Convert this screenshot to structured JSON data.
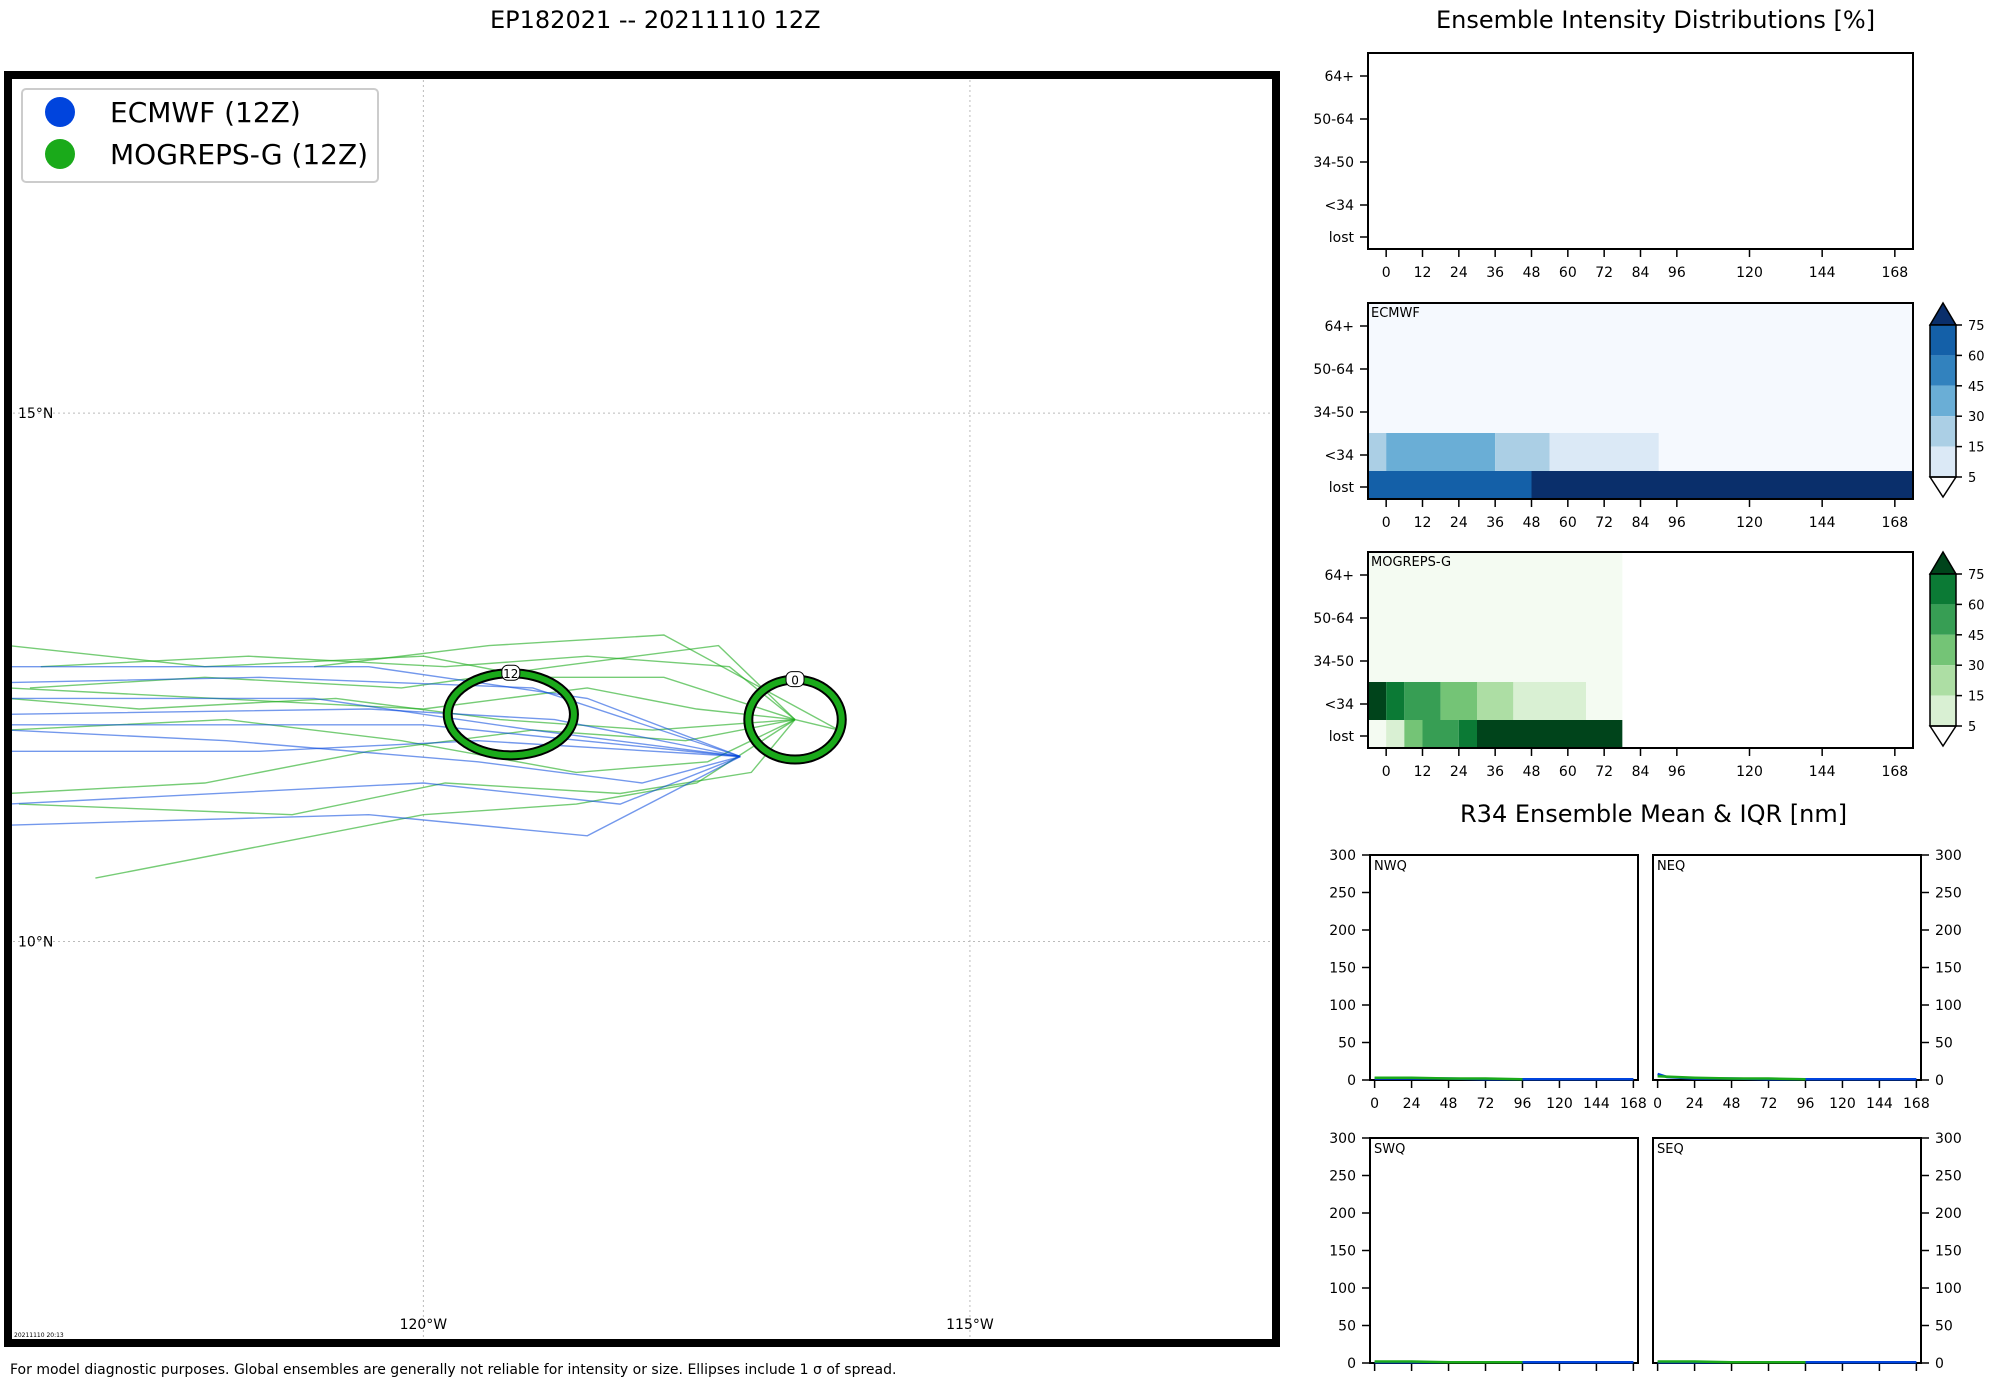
{
  "header": {
    "map_title": "EP182021 -- 20211110 12Z",
    "intensity_title": "Ensemble Intensity Distributions [%]",
    "r34_title": "R34 Ensemble Mean & IQR [nm]",
    "footnote": "For model diagnostic purposes. Global ensembles are generally not reliable for intensity or size. Ellipses include 1 σ of spread.",
    "stamp": "20211110 20:13"
  },
  "colors": {
    "ecmwf": "#0044dd",
    "mogreps": "#1aaa1a"
  },
  "chart_data": [
    {
      "type": "map",
      "legend_position": "top-left",
      "legend": [
        {
          "name": "ECMWF (12Z)",
          "color": "#0044dd"
        },
        {
          "name": "MOGREPS-G (12Z)",
          "color": "#1aaa1a"
        }
      ],
      "lon_range": [
        -123.8,
        -112.2
      ],
      "lat_range": [
        6.2,
        18.2
      ],
      "lon_ticks": [
        {
          "value": -120,
          "label": "120°W"
        },
        {
          "value": -115,
          "label": "115°W"
        }
      ],
      "lat_ticks": [
        {
          "value": 15,
          "label": "15°N"
        },
        {
          "value": 10,
          "label": "10°N"
        }
      ],
      "grid": true,
      "ellipses": [
        {
          "label": "0",
          "lon": -116.6,
          "lat": 12.1,
          "rx_deg": 0.4,
          "ry_deg": 0.35,
          "color": "#1aaa1a"
        },
        {
          "label": "12",
          "lon": -119.2,
          "lat": 12.15,
          "rx_deg": 0.55,
          "ry_deg": 0.36,
          "color": "#1aaa1a"
        }
      ],
      "ecmwf_tracks": [
        [
          [
            -117.1,
            11.75
          ],
          [
            -118.8,
            12.1
          ],
          [
            -120.5,
            12.2
          ],
          [
            -123.8,
            12.15
          ]
        ],
        [
          [
            -117.1,
            11.75
          ],
          [
            -119.0,
            12.0
          ],
          [
            -121.0,
            12.3
          ],
          [
            -123.8,
            12.3
          ]
        ],
        [
          [
            -117.1,
            11.75
          ],
          [
            -118.5,
            12.3
          ],
          [
            -120.5,
            12.6
          ],
          [
            -123.8,
            12.6
          ]
        ],
        [
          [
            -117.1,
            11.75
          ],
          [
            -119.5,
            11.9
          ],
          [
            -121.5,
            11.8
          ],
          [
            -123.8,
            11.8
          ]
        ],
        [
          [
            -117.1,
            11.75
          ],
          [
            -118.2,
            11.3
          ],
          [
            -120.0,
            11.5
          ],
          [
            -123.8,
            11.3
          ]
        ],
        [
          [
            -117.1,
            11.75
          ],
          [
            -118.5,
            11.0
          ],
          [
            -120.5,
            11.2
          ],
          [
            -123.8,
            11.1
          ]
        ],
        [
          [
            -117.1,
            11.75
          ],
          [
            -119.0,
            12.4
          ],
          [
            -121.5,
            12.5
          ],
          [
            -123.8,
            12.45
          ]
        ],
        [
          [
            -117.1,
            11.75
          ],
          [
            -120.0,
            12.05
          ],
          [
            -123.8,
            12.05
          ]
        ],
        [
          [
            -117.1,
            11.75
          ],
          [
            -118.0,
            11.5
          ],
          [
            -119.5,
            11.7
          ],
          [
            -121.8,
            11.9
          ],
          [
            -123.8,
            12.0
          ]
        ]
      ],
      "mogreps_tracks": [
        [
          [
            -116.6,
            12.1
          ],
          [
            -117.5,
            12.2
          ],
          [
            -118.5,
            12.4
          ],
          [
            -120.0,
            12.2
          ],
          [
            -123.8,
            12.4
          ]
        ],
        [
          [
            -116.6,
            12.1
          ],
          [
            -117.3,
            12.8
          ],
          [
            -118.8,
            12.6
          ],
          [
            -120.2,
            12.4
          ],
          [
            -122.0,
            12.5
          ],
          [
            -123.6,
            12.4
          ]
        ],
        [
          [
            -116.6,
            12.1
          ],
          [
            -117.5,
            11.5
          ],
          [
            -118.6,
            11.3
          ],
          [
            -120.0,
            11.2
          ],
          [
            -121.5,
            10.9
          ],
          [
            -123.0,
            10.6
          ]
        ],
        [
          [
            -116.6,
            12.1
          ],
          [
            -117.6,
            11.9
          ],
          [
            -119.0,
            12.0
          ],
          [
            -120.5,
            11.8
          ],
          [
            -122.0,
            11.5
          ],
          [
            -123.8,
            11.4
          ]
        ],
        [
          [
            -116.6,
            12.1
          ],
          [
            -117.2,
            12.6
          ],
          [
            -118.5,
            12.7
          ],
          [
            -119.8,
            12.6
          ],
          [
            -121.6,
            12.7
          ],
          [
            -123.5,
            12.6
          ]
        ],
        [
          [
            -116.6,
            12.1
          ],
          [
            -117.8,
            12.5
          ],
          [
            -119.0,
            12.5
          ],
          [
            -120.0,
            12.7
          ],
          [
            -122.0,
            12.6
          ],
          [
            -123.8,
            12.8
          ]
        ],
        [
          [
            -116.6,
            12.1
          ],
          [
            -117.4,
            11.7
          ],
          [
            -118.6,
            11.6
          ],
          [
            -120.2,
            11.9
          ],
          [
            -121.8,
            12.1
          ],
          [
            -123.8,
            12.0
          ]
        ],
        [
          [
            -116.6,
            12.1
          ],
          [
            -117.0,
            11.6
          ],
          [
            -118.2,
            11.4
          ],
          [
            -119.8,
            11.5
          ],
          [
            -121.2,
            11.2
          ],
          [
            -123.7,
            11.3
          ]
        ],
        [
          [
            -116.6,
            12.1
          ],
          [
            -117.9,
            12.0
          ],
          [
            -119.3,
            12.1
          ],
          [
            -120.8,
            12.3
          ],
          [
            -122.6,
            12.2
          ],
          [
            -123.8,
            12.3
          ]
        ],
        [
          [
            -116.6,
            12.1
          ],
          [
            -116.2,
            12.0
          ],
          [
            -117.8,
            12.9
          ],
          [
            -119.4,
            12.8
          ],
          [
            -121.0,
            12.6
          ]
        ]
      ]
    },
    {
      "type": "heatmap",
      "name": "",
      "x_ticks": [
        0,
        12,
        24,
        36,
        48,
        60,
        72,
        84,
        96,
        120,
        144,
        168
      ],
      "y_labels": [
        "lost",
        "<34",
        "34-50",
        "50-64",
        "64+"
      ],
      "cells": []
    },
    {
      "type": "heatmap",
      "name": "ECMWF",
      "x_ticks": [
        0,
        12,
        24,
        36,
        48,
        60,
        72,
        84,
        96,
        120,
        144,
        168
      ],
      "y_labels": [
        "lost",
        "<34",
        "34-50",
        "50-64",
        "64+"
      ],
      "colorbar_ticks": [
        5,
        15,
        30,
        45,
        60,
        75
      ],
      "colorbar_colors": [
        "#dbe9f6",
        "#abcfe5",
        "#6aaed6",
        "#3282be",
        "#1460a8",
        "#0a2f6b"
      ],
      "background": "#f5f9fe",
      "background_x_range": [
        -6,
        174
      ],
      "cells": [
        {
          "row": "lost",
          "x0": -6,
          "x1": 48,
          "value": 62
        },
        {
          "row": "lost",
          "x0": 48,
          "x1": 174,
          "value": 80
        },
        {
          "row": "<34",
          "x0": -6,
          "x1": 0,
          "value": 25
        },
        {
          "row": "<34",
          "x0": 0,
          "x1": 36,
          "value": 35
        },
        {
          "row": "<34",
          "x0": 36,
          "x1": 54,
          "value": 25
        },
        {
          "row": "<34",
          "x0": 54,
          "x1": 90,
          "value": 10
        }
      ]
    },
    {
      "type": "heatmap",
      "name": "MOGREPS-G",
      "x_ticks": [
        0,
        12,
        24,
        36,
        48,
        60,
        72,
        84,
        96,
        120,
        144,
        168
      ],
      "y_labels": [
        "lost",
        "<34",
        "34-50",
        "50-64",
        "64+"
      ],
      "colorbar_ticks": [
        5,
        15,
        30,
        45,
        60,
        75
      ],
      "colorbar_colors": [
        "#d9f0d3",
        "#addea4",
        "#74c476",
        "#379e54",
        "#0b7a35",
        "#00441b"
      ],
      "background": "#f4fbf2",
      "background_x_range": [
        -6,
        78
      ],
      "cells": [
        {
          "row": "<34",
          "x0": -6,
          "x1": 0,
          "value": 80
        },
        {
          "row": "<34",
          "x0": 0,
          "x1": 6,
          "value": 65
        },
        {
          "row": "<34",
          "x0": 6,
          "x1": 18,
          "value": 50
        },
        {
          "row": "<34",
          "x0": 18,
          "x1": 30,
          "value": 35
        },
        {
          "row": "<34",
          "x0": 30,
          "x1": 42,
          "value": 20
        },
        {
          "row": "<34",
          "x0": 42,
          "x1": 66,
          "value": 10
        },
        {
          "row": "lost",
          "x0": 0,
          "x1": 6,
          "value": 10
        },
        {
          "row": "lost",
          "x0": 6,
          "x1": 12,
          "value": 35
        },
        {
          "row": "lost",
          "x0": 12,
          "x1": 24,
          "value": 50
        },
        {
          "row": "lost",
          "x0": 24,
          "x1": 30,
          "value": 65
        },
        {
          "row": "lost",
          "x0": 30,
          "x1": 78,
          "value": 80
        }
      ]
    },
    {
      "type": "line",
      "name": "NWQ",
      "x_ticks": [
        0,
        24,
        48,
        72,
        96,
        120,
        144,
        168
      ],
      "ylim": [
        0,
        300
      ],
      "y_ticks": [
        0,
        50,
        100,
        150,
        200,
        250,
        300
      ],
      "series": [
        {
          "color": "#0044dd",
          "x": [
            0,
            24,
            48,
            72,
            96,
            120,
            144,
            168
          ],
          "y": [
            2,
            2,
            2,
            1,
            1,
            1,
            1,
            1
          ]
        },
        {
          "color": "#1aaa1a",
          "x": [
            0,
            24,
            48,
            72,
            96
          ],
          "y": [
            3,
            3,
            2,
            2,
            1
          ]
        }
      ]
    },
    {
      "type": "line",
      "name": "NEQ",
      "x_ticks": [
        0,
        24,
        48,
        72,
        96,
        120,
        144,
        168
      ],
      "ylim": [
        0,
        300
      ],
      "y_ticks": [
        0,
        50,
        100,
        150,
        200,
        250,
        300
      ],
      "series": [
        {
          "color": "#0044dd",
          "x": [
            0,
            6,
            24,
            48,
            72,
            96,
            120,
            144,
            168
          ],
          "y": [
            8,
            4,
            2,
            2,
            1,
            1,
            1,
            1,
            1
          ]
        },
        {
          "color": "#1aaa1a",
          "x": [
            0,
            24,
            48,
            72,
            96
          ],
          "y": [
            5,
            3,
            2,
            2,
            1
          ]
        }
      ]
    },
    {
      "type": "line",
      "name": "SWQ",
      "x_ticks": [
        0,
        24,
        48,
        72,
        96,
        120,
        144,
        168
      ],
      "ylim": [
        0,
        300
      ],
      "y_ticks": [
        0,
        50,
        100,
        150,
        200,
        250,
        300
      ],
      "series": [
        {
          "color": "#0044dd",
          "x": [
            0,
            24,
            48,
            72,
            96,
            120,
            144,
            168
          ],
          "y": [
            1,
            1,
            1,
            1,
            1,
            1,
            1,
            1
          ]
        },
        {
          "color": "#1aaa1a",
          "x": [
            0,
            24,
            48,
            72,
            96
          ],
          "y": [
            2,
            2,
            1,
            1,
            1
          ]
        }
      ]
    },
    {
      "type": "line",
      "name": "SEQ",
      "x_ticks": [
        0,
        24,
        48,
        72,
        96,
        120,
        144,
        168
      ],
      "ylim": [
        0,
        300
      ],
      "y_ticks": [
        0,
        50,
        100,
        150,
        200,
        250,
        300
      ],
      "series": [
        {
          "color": "#0044dd",
          "x": [
            0,
            24,
            48,
            72,
            96,
            120,
            144,
            168
          ],
          "y": [
            1,
            1,
            1,
            1,
            1,
            1,
            1,
            1
          ]
        },
        {
          "color": "#1aaa1a",
          "x": [
            0,
            24,
            48,
            72,
            96
          ],
          "y": [
            2,
            2,
            1,
            1,
            1
          ]
        }
      ]
    }
  ]
}
